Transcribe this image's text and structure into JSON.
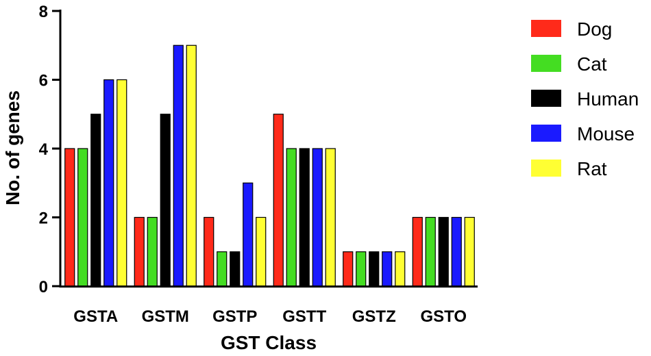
{
  "chart_data": {
    "type": "bar",
    "title": "",
    "xlabel": "GST Class",
    "ylabel": "No. of genes",
    "categories": [
      "GSTA",
      "GSTM",
      "GSTP",
      "GSTT",
      "GSTZ",
      "GSTO"
    ],
    "ylim": [
      0,
      8
    ],
    "yticks": [
      0,
      2,
      4,
      6,
      8
    ],
    "grid": false,
    "legend_position": "right",
    "series": [
      {
        "name": "Dog",
        "color": "#ff2a1a",
        "values": [
          4,
          2,
          2,
          5,
          1,
          2
        ]
      },
      {
        "name": "Cat",
        "color": "#44dd22",
        "values": [
          4,
          2,
          1,
          4,
          1,
          2
        ]
      },
      {
        "name": "Human",
        "color": "#000000",
        "values": [
          5,
          5,
          1,
          4,
          1,
          2
        ]
      },
      {
        "name": "Mouse",
        "color": "#1a1aff",
        "values": [
          6,
          7,
          3,
          4,
          1,
          2
        ]
      },
      {
        "name": "Rat",
        "color": "#ffff33",
        "values": [
          6,
          7,
          2,
          4,
          1,
          2
        ]
      }
    ]
  }
}
